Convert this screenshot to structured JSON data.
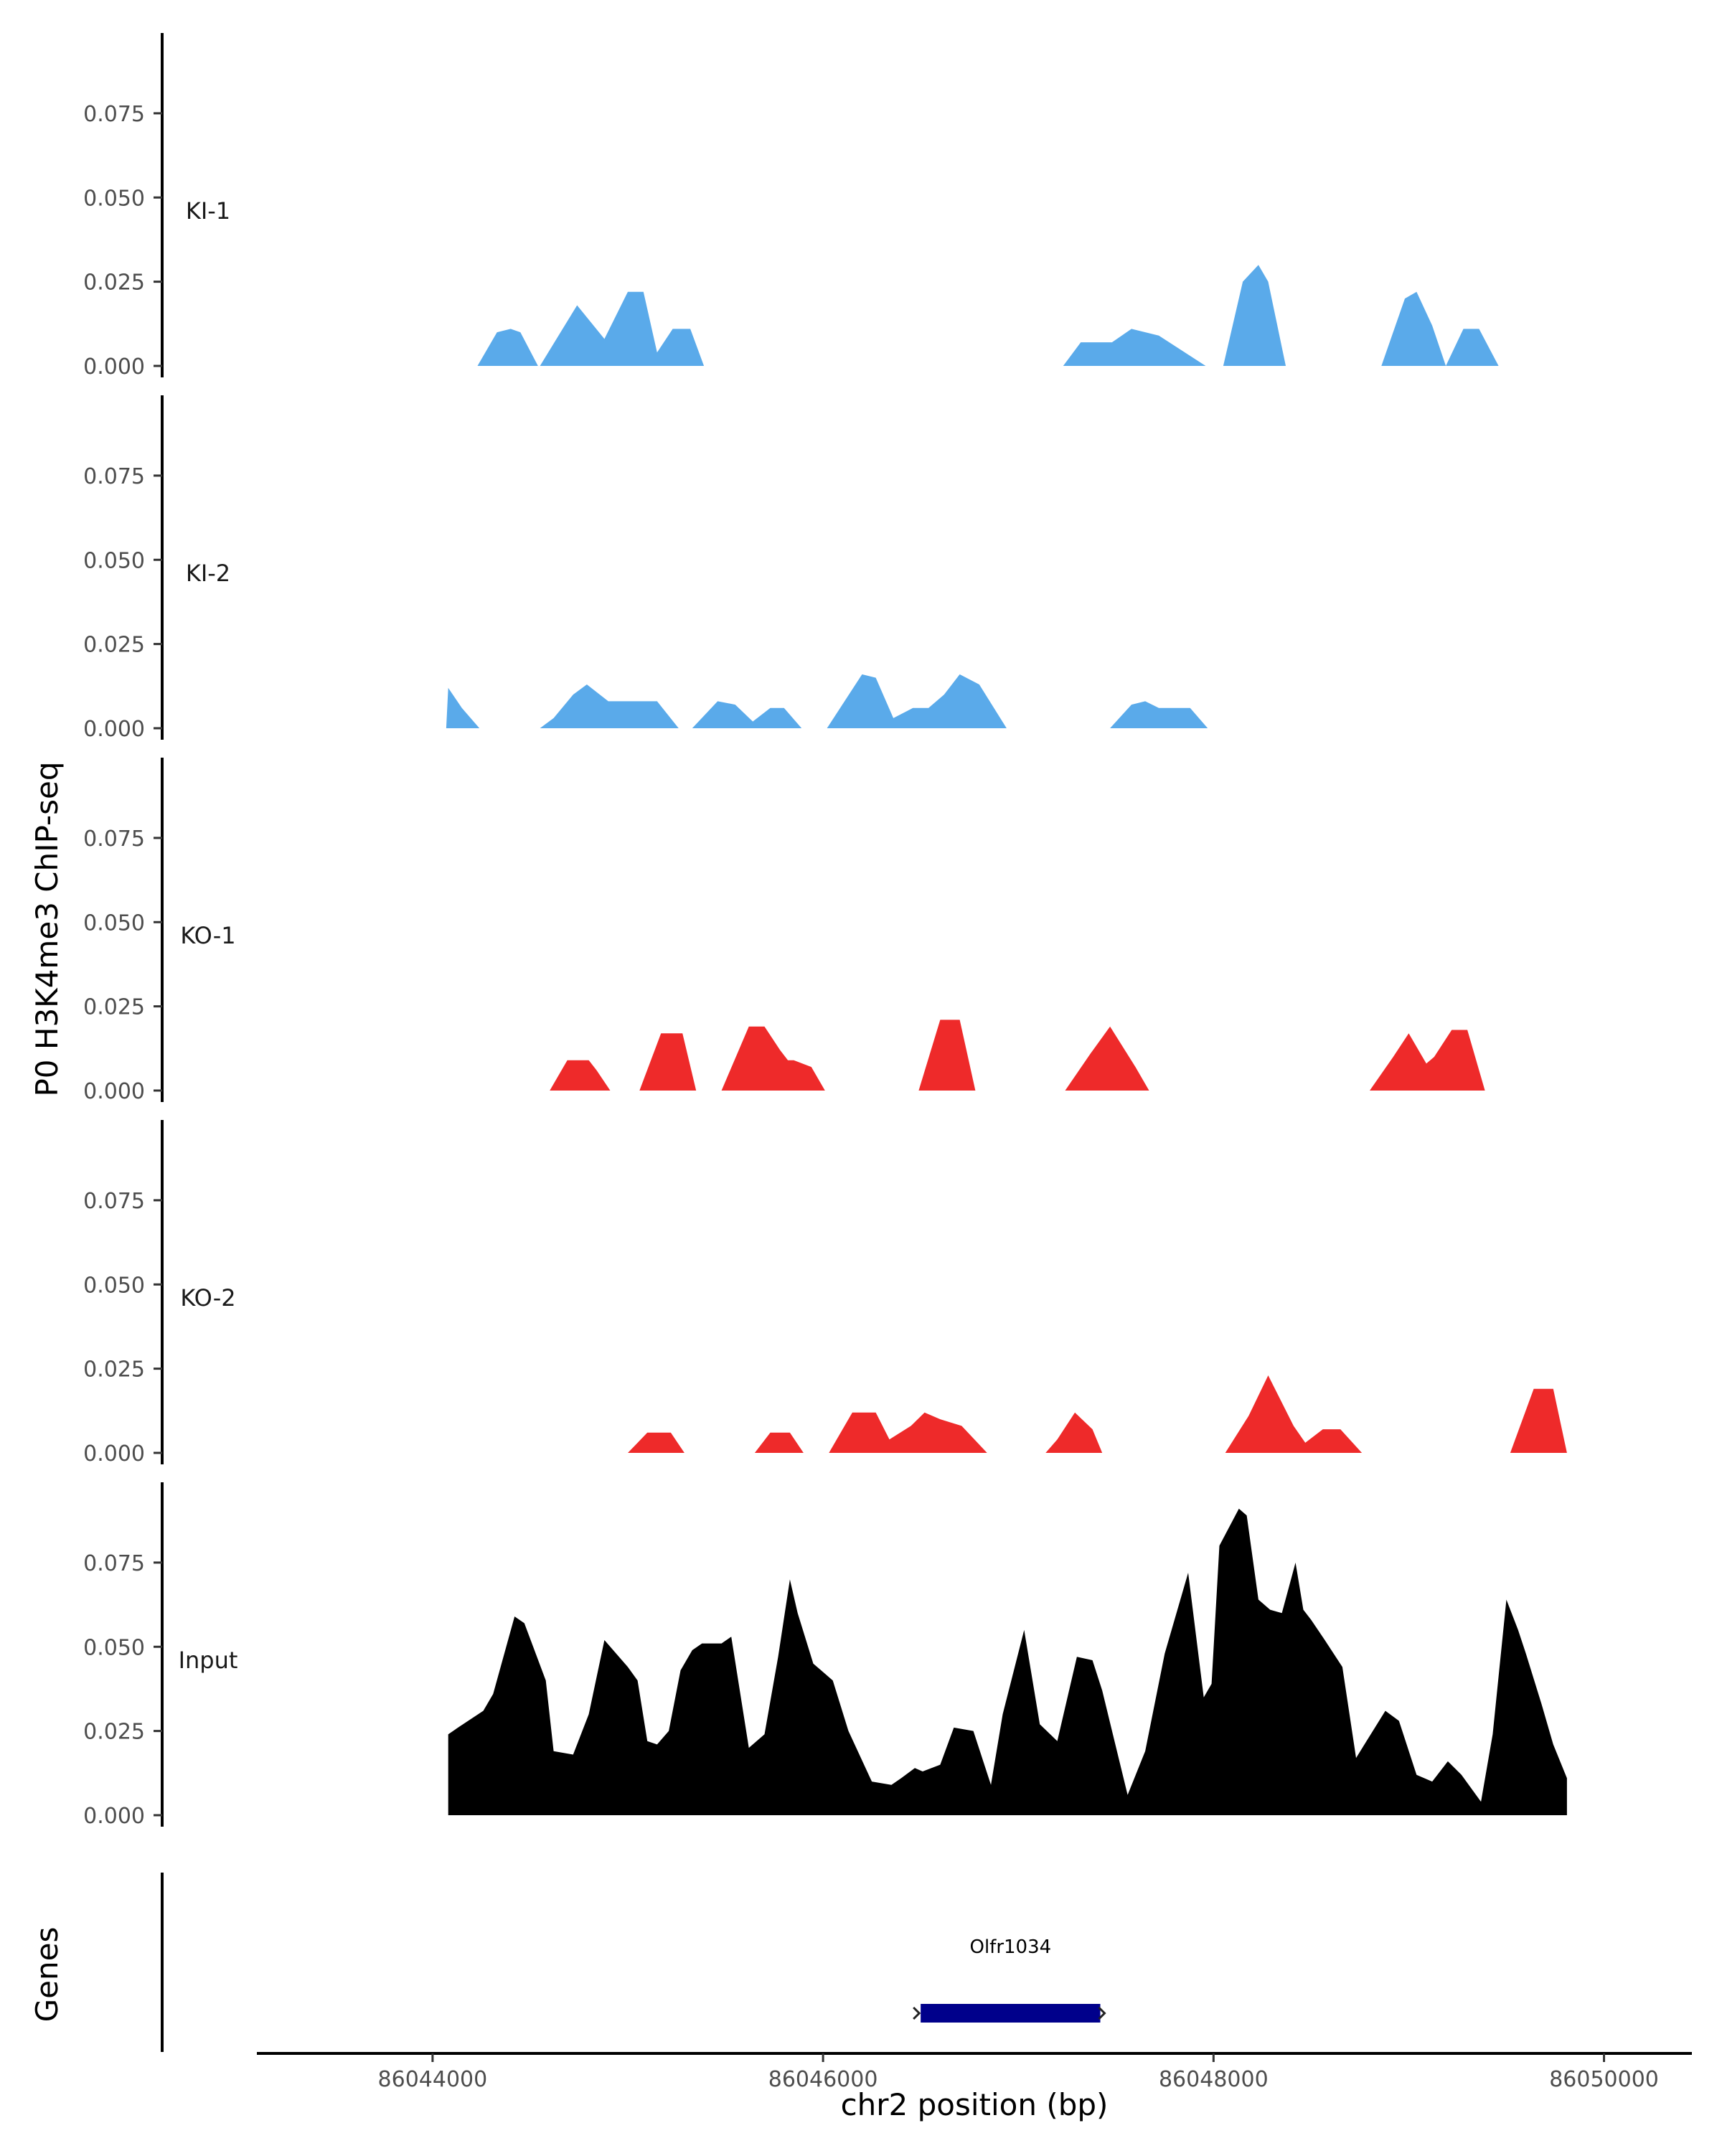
{
  "chart_data": {
    "type": "area",
    "ylabel": "P0 H3K4me3 ChIP-seq",
    "xlabel": "chr2 position (bp)",
    "xlim": [
      86043100,
      86050450
    ],
    "x_ticks": [
      86044000,
      86046000,
      86048000,
      86050000
    ],
    "x_tick_labels": [
      "86044000",
      "86046000",
      "86048000",
      "86050000"
    ],
    "ylim": [
      0,
      0.095
    ],
    "y_ticks": [
      0.0,
      0.025,
      0.05,
      0.075
    ],
    "y_tick_labels": [
      "0.000",
      "0.025",
      "0.050",
      "0.075"
    ],
    "colors": {
      "KI": "#5aaaea",
      "KO": "#ee2a2a",
      "Input": "#000000",
      "gene": "#00008b"
    },
    "tracks": [
      {
        "name": "KI-1",
        "color": "#5aaaea",
        "segments": [
          {
            "x": [
              86044230,
              86044330,
              86044400,
              86044450,
              86044540
            ],
            "y": [
              0,
              0.01,
              0.011,
              0.01,
              0
            ]
          },
          {
            "x": [
              86044550,
              86044740,
              86044880,
              86045000,
              86045080,
              86045150,
              86045230,
              86045320,
              86045390
            ],
            "y": [
              0,
              0.018,
              0.008,
              0.022,
              0.022,
              0.004,
              0.011,
              0.011,
              0
            ]
          },
          {
            "x": [
              86047230,
              86047320,
              86047480,
              86047580,
              86047720,
              86047960
            ],
            "y": [
              0,
              0.007,
              0.007,
              0.011,
              0.009,
              0
            ]
          },
          {
            "x": [
              86048050,
              86048150,
              86048230,
              86048280,
              86048370
            ],
            "y": [
              0,
              0.025,
              0.03,
              0.025,
              0
            ]
          },
          {
            "x": [
              86048860,
              86048980,
              86049040,
              86049120,
              86049190,
              86049280,
              86049360,
              86049460
            ],
            "y": [
              0,
              0.02,
              0.022,
              0.012,
              0,
              0.011,
              0.011,
              0
            ]
          }
        ]
      },
      {
        "name": "KI-2",
        "color": "#5aaaea",
        "segments": [
          {
            "x": [
              86044070,
              86044080,
              86044150,
              86044240
            ],
            "y": [
              0,
              0.012,
              0.006,
              0
            ]
          },
          {
            "x": [
              86044550,
              86044620,
              86044720,
              86044790,
              86044900,
              86045150,
              86045260
            ],
            "y": [
              0,
              0.003,
              0.01,
              0.013,
              0.008,
              0.008,
              0
            ]
          },
          {
            "x": [
              86045330,
              86045460,
              86045550,
              86045640,
              86045730,
              86045800,
              86045890,
              86045950
            ],
            "y": [
              0,
              0.008,
              0.007,
              0.002,
              0.006,
              0.006,
              0,
              0
            ]
          },
          {
            "x": [
              86046020,
              86046200,
              86046270,
              86046360,
              86046460,
              86046540,
              86046620,
              86046700,
              86046800,
              86046940
            ],
            "y": [
              0,
              0.016,
              0.015,
              0.003,
              0.006,
              0.006,
              0.01,
              0.016,
              0.013,
              0
            ]
          },
          {
            "x": [
              86047470,
              86047580,
              86047650,
              86047720,
              86047880,
              86047970
            ],
            "y": [
              0,
              0.007,
              0.008,
              0.006,
              0.006,
              0
            ]
          }
        ]
      },
      {
        "name": "KO-1",
        "color": "#ee2a2a",
        "segments": [
          {
            "x": [
              86044600,
              86044690,
              86044800,
              86044840,
              86044910
            ],
            "y": [
              0,
              0.009,
              0.009,
              0.006,
              0
            ]
          },
          {
            "x": [
              86045060,
              86045170,
              86045280,
              86045350
            ],
            "y": [
              0,
              0.017,
              0.017,
              0
            ]
          },
          {
            "x": [
              86045480,
              86045620,
              86045700,
              86045780,
              86045820,
              86045850,
              86045940,
              86046010
            ],
            "y": [
              0,
              0.019,
              0.019,
              0.012,
              0.009,
              0.009,
              0.007,
              0
            ]
          },
          {
            "x": [
              86046490,
              86046600,
              86046700,
              86046780
            ],
            "y": [
              0,
              0.021,
              0.021,
              0
            ]
          },
          {
            "x": [
              86047240,
              86047370,
              86047470,
              86047600,
              86047670
            ],
            "y": [
              0,
              0.011,
              0.019,
              0.007,
              0
            ]
          },
          {
            "x": [
              86048800,
              86048920,
              86049000,
              86049090,
              86049130,
              86049220,
              86049300,
              86049390
            ],
            "y": [
              0,
              0.01,
              0.017,
              0.008,
              0.01,
              0.018,
              0.018,
              0
            ]
          }
        ]
      },
      {
        "name": "KO-2",
        "color": "#ee2a2a",
        "segments": [
          {
            "x": [
              86045000,
              86045100,
              86045220,
              86045290
            ],
            "y": [
              0,
              0.006,
              0.006,
              0
            ]
          },
          {
            "x": [
              86045650,
              86045730,
              86045830,
              86045900
            ],
            "y": [
              0,
              0.006,
              0.006,
              0
            ]
          },
          {
            "x": [
              86046030,
              86046150,
              86046270,
              86046340,
              86046450,
              86046520,
              86046600,
              86046710,
              86046840
            ],
            "y": [
              0,
              0.012,
              0.012,
              0.004,
              0.008,
              0.012,
              0.01,
              0.008,
              0
            ]
          },
          {
            "x": [
              86047140,
              86047200,
              86047290,
              86047380,
              86047430
            ],
            "y": [
              0,
              0.004,
              0.012,
              0.007,
              0
            ]
          },
          {
            "x": [
              86048060,
              86048180,
              86048280,
              86048410,
              86048470,
              86048560,
              86048650,
              86048760
            ],
            "y": [
              0,
              0.011,
              0.023,
              0.008,
              0.003,
              0.007,
              0.007,
              0
            ]
          },
          {
            "x": [
              86049520,
              86049640,
              86049740,
              86049810
            ],
            "y": [
              0,
              0.019,
              0.019,
              0
            ]
          }
        ]
      },
      {
        "name": "Input",
        "color": "#000000",
        "segments": [
          {
            "x": [
              86044080,
              86044130,
              86044260,
              86044310,
              86044420,
              86044470,
              86044580,
              86044620,
              86044720,
              86044800,
              86044880,
              86045000,
              86045050,
              86045100,
              86045150,
              86045210,
              86045270,
              86045330,
              86045380,
              86045480,
              86045530,
              86045620,
              86045700,
              86045770,
              86045830,
              86045870,
              86045950,
              86046050,
              86046130,
              86046250,
              86046350,
              86046400,
              86046470,
              86046510,
              86046600,
              86046670,
              86046770,
              86046860,
              86046920,
              86047030,
              86047110,
              86047200,
              86047300,
              86047380,
              86047430,
              86047560,
              86047650,
              86047750,
              86047870,
              86047950,
              86047990,
              86048030,
              86048130,
              86048170,
              86048230,
              86048290,
              86048350,
              86048420,
              86048460,
              86048500,
              86048570,
              86048660,
              86048730,
              86048880,
              86048950,
              86049040,
              86049120,
              86049200,
              86049270,
              86049370,
              86049430,
              86049500,
              86049560,
              86049600,
              86049680,
              86049740,
              86049810,
              86049810
            ],
            "y": [
              0.024,
              0.026,
              0.031,
              0.036,
              0.059,
              0.057,
              0.04,
              0.019,
              0.018,
              0.03,
              0.052,
              0.044,
              0.04,
              0.022,
              0.021,
              0.025,
              0.043,
              0.049,
              0.051,
              0.051,
              0.053,
              0.02,
              0.024,
              0.047,
              0.07,
              0.06,
              0.045,
              0.04,
              0.025,
              0.01,
              0.009,
              0.011,
              0.014,
              0.013,
              0.015,
              0.026,
              0.025,
              0.009,
              0.03,
              0.055,
              0.027,
              0.022,
              0.047,
              0.046,
              0.037,
              0.006,
              0.019,
              0.048,
              0.072,
              0.035,
              0.039,
              0.08,
              0.091,
              0.089,
              0.064,
              0.061,
              0.06,
              0.075,
              0.061,
              0.058,
              0.052,
              0.044,
              0.017,
              0.031,
              0.028,
              0.012,
              0.01,
              0.016,
              0.012,
              0.004,
              0.024,
              0.064,
              0.055,
              0.048,
              0.033,
              0.021,
              0.011,
              0.0
            ]
          }
        ]
      }
    ],
    "genes": [
      {
        "name": "Olfr1034",
        "start": 86046500,
        "end": 86047420,
        "strand": "-"
      }
    ],
    "gene_track_label": "Genes"
  }
}
